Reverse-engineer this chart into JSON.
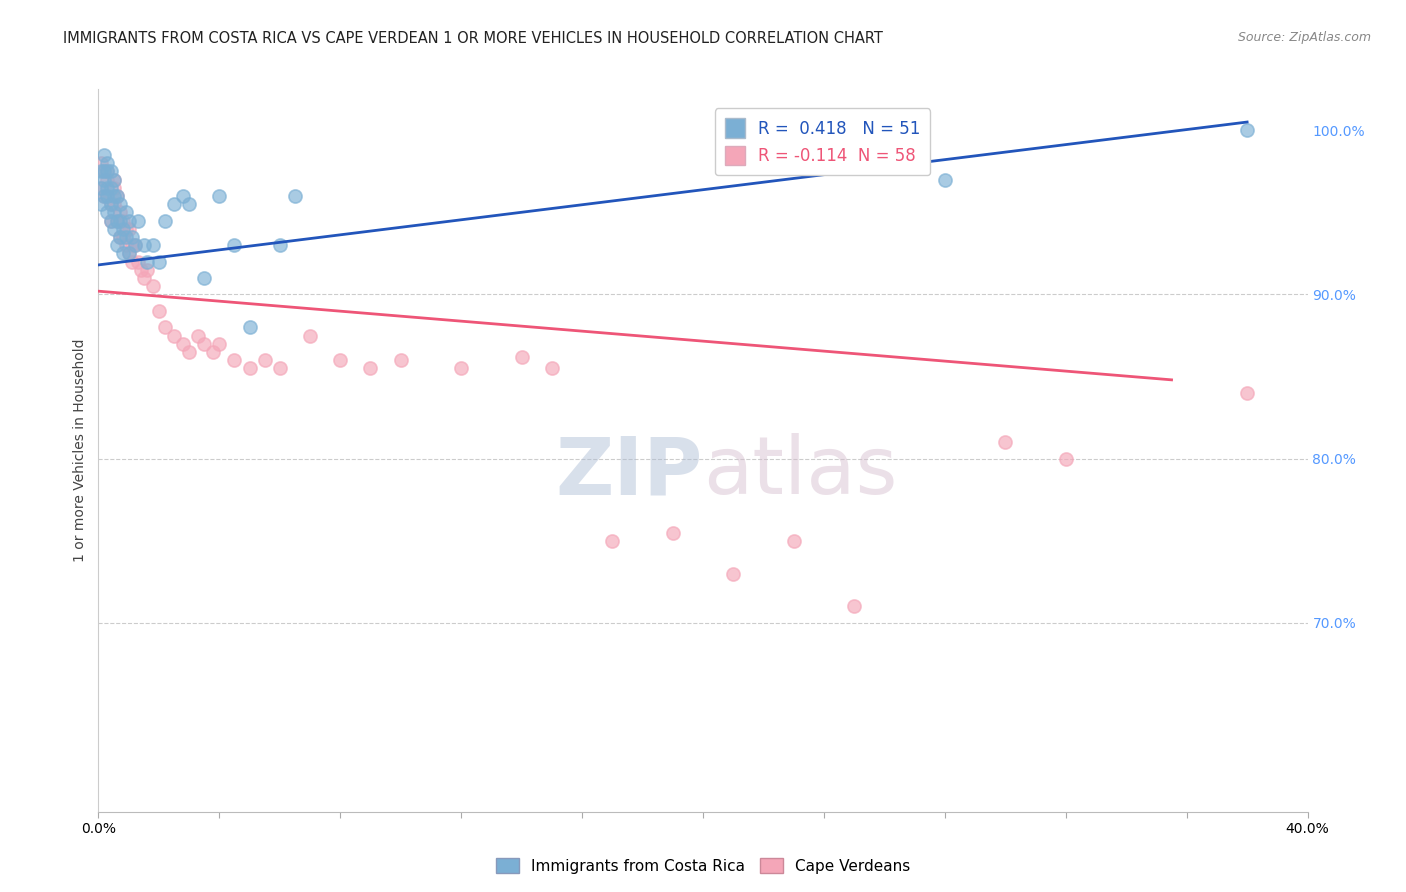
{
  "title": "IMMIGRANTS FROM COSTA RICA VS CAPE VERDEAN 1 OR MORE VEHICLES IN HOUSEHOLD CORRELATION CHART",
  "source": "Source: ZipAtlas.com",
  "ylabel": "1 or more Vehicles in Household",
  "x_min": 0.0,
  "x_max": 0.4,
  "y_min": 0.585,
  "y_max": 1.025,
  "blue_R": 0.418,
  "blue_N": 51,
  "pink_R": -0.114,
  "pink_N": 58,
  "blue_line_x": [
    0.0,
    0.38
  ],
  "blue_line_y": [
    0.918,
    1.005
  ],
  "pink_line_x": [
    0.0,
    0.355
  ],
  "pink_line_y": [
    0.902,
    0.848
  ],
  "blue_scatter_x": [
    0.001,
    0.001,
    0.001,
    0.002,
    0.002,
    0.002,
    0.002,
    0.003,
    0.003,
    0.003,
    0.003,
    0.003,
    0.004,
    0.004,
    0.004,
    0.004,
    0.005,
    0.005,
    0.005,
    0.005,
    0.006,
    0.006,
    0.006,
    0.007,
    0.007,
    0.007,
    0.008,
    0.008,
    0.009,
    0.009,
    0.01,
    0.01,
    0.011,
    0.012,
    0.013,
    0.015,
    0.016,
    0.018,
    0.02,
    0.022,
    0.025,
    0.028,
    0.03,
    0.035,
    0.04,
    0.045,
    0.05,
    0.06,
    0.065,
    0.28,
    0.38
  ],
  "blue_scatter_y": [
    0.955,
    0.975,
    0.965,
    0.985,
    0.975,
    0.97,
    0.96,
    0.98,
    0.975,
    0.96,
    0.95,
    0.965,
    0.975,
    0.965,
    0.955,
    0.945,
    0.96,
    0.95,
    0.97,
    0.94,
    0.96,
    0.945,
    0.93,
    0.955,
    0.945,
    0.935,
    0.94,
    0.925,
    0.95,
    0.935,
    0.945,
    0.925,
    0.935,
    0.93,
    0.945,
    0.93,
    0.92,
    0.93,
    0.92,
    0.945,
    0.955,
    0.96,
    0.955,
    0.91,
    0.96,
    0.93,
    0.88,
    0.93,
    0.96,
    0.97,
    1.0
  ],
  "pink_scatter_x": [
    0.001,
    0.001,
    0.002,
    0.002,
    0.003,
    0.003,
    0.003,
    0.004,
    0.004,
    0.005,
    0.005,
    0.005,
    0.006,
    0.006,
    0.007,
    0.007,
    0.008,
    0.008,
    0.009,
    0.009,
    0.01,
    0.01,
    0.011,
    0.011,
    0.012,
    0.013,
    0.014,
    0.015,
    0.016,
    0.018,
    0.02,
    0.022,
    0.025,
    0.028,
    0.03,
    0.033,
    0.035,
    0.038,
    0.04,
    0.045,
    0.05,
    0.055,
    0.06,
    0.07,
    0.08,
    0.09,
    0.1,
    0.12,
    0.14,
    0.15,
    0.17,
    0.19,
    0.21,
    0.23,
    0.25,
    0.3,
    0.32,
    0.38
  ],
  "pink_scatter_y": [
    0.98,
    0.965,
    0.975,
    0.96,
    0.97,
    0.96,
    0.975,
    0.955,
    0.945,
    0.97,
    0.955,
    0.965,
    0.96,
    0.945,
    0.95,
    0.935,
    0.945,
    0.935,
    0.94,
    0.93,
    0.94,
    0.925,
    0.93,
    0.92,
    0.93,
    0.92,
    0.915,
    0.91,
    0.915,
    0.905,
    0.89,
    0.88,
    0.875,
    0.87,
    0.865,
    0.875,
    0.87,
    0.865,
    0.87,
    0.86,
    0.855,
    0.86,
    0.855,
    0.875,
    0.86,
    0.855,
    0.86,
    0.855,
    0.862,
    0.855,
    0.75,
    0.755,
    0.73,
    0.75,
    0.71,
    0.81,
    0.8,
    0.84
  ],
  "blue_color": "#7BAFD4",
  "pink_color": "#F4A6B8",
  "blue_line_color": "#2255BB",
  "pink_line_color": "#EE5577",
  "grid_color": "#CCCCCC",
  "right_axis_color": "#5599FF",
  "title_fontsize": 10.5,
  "source_fontsize": 9,
  "legend_fontsize": 12,
  "marker_size": 90
}
